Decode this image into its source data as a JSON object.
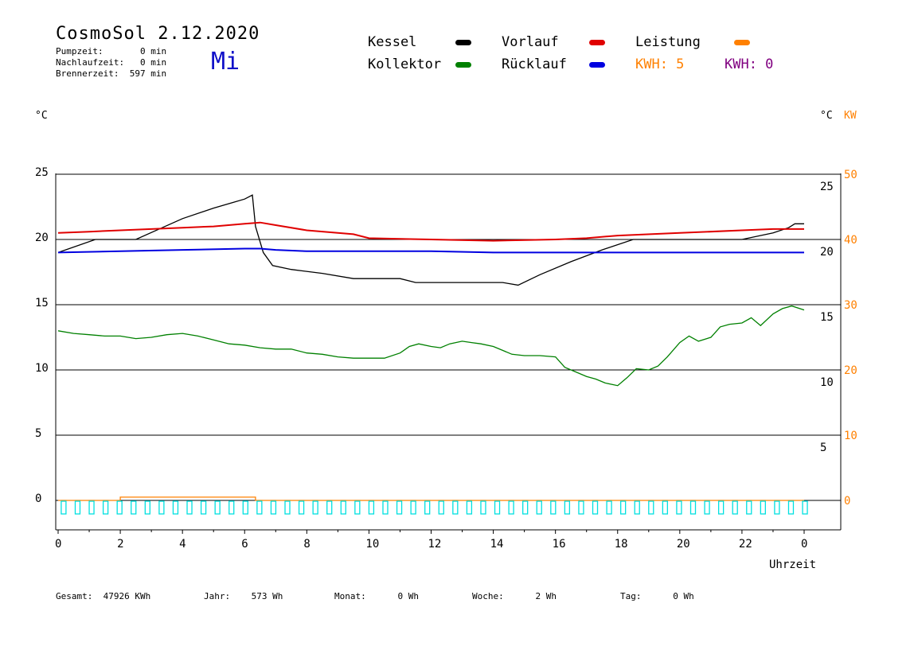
{
  "header": {
    "title": "CosmoSol 2.12.2020",
    "day": "Mi",
    "pumpzeit": "Pumpzeit:       0 min",
    "nachlaufzeit": "Nachlaufzeit:   0 min",
    "brennerzeit": "Brennerzeit:  597 min"
  },
  "legend": {
    "kessel": "Kessel",
    "vorlauf": "Vorlauf",
    "leistung": "Leistung",
    "kollektor": "Kollektor",
    "ruecklauf": "Rücklauf",
    "kwh1": "KWH: 5",
    "kwh2": "KWH: 0",
    "colors": {
      "kessel": "#000000",
      "vorlauf": "#e00000",
      "leistung": "#ff8000",
      "kollektor": "#008000",
      "ruecklauf": "#0000e0",
      "kwh2": "#800080",
      "pump": "#00e0e0"
    }
  },
  "axes": {
    "left_unit": "°C",
    "right_unit": "°C",
    "right_unit2": "KW",
    "xlabel": "Uhrzeit"
  },
  "footer": {
    "gesamt": "Gesamt:  47926 KWh",
    "jahr": "Jahr:    573 Wh",
    "monat": "Monat:      0 Wh",
    "woche": "Woche:      2 Wh",
    "tag": "Tag:      0 Wh"
  },
  "chart_data": {
    "type": "line",
    "title": "CosmoSol 2.12.2020",
    "xlabel": "Uhrzeit",
    "ylabel": "°C",
    "xlim": [
      0,
      24
    ],
    "ylim": [
      -2,
      26
    ],
    "y2lim": [
      -4,
      52
    ],
    "grid": true,
    "x_ticks": [
      "0",
      "2",
      "4",
      "6",
      "8",
      "10",
      "12",
      "14",
      "16",
      "18",
      "20",
      "22",
      "0"
    ],
    "y_ticks_left": [
      "25",
      "20",
      "15",
      "10",
      "5",
      "0"
    ],
    "y_ticks_right_c": [
      "25",
      "20",
      "15",
      "10",
      "5"
    ],
    "y_ticks_right_kw": [
      "50",
      "40",
      "30",
      "20",
      "10",
      "0"
    ],
    "series": [
      {
        "name": "Kessel",
        "axis": "left",
        "x": [
          0,
          1.2,
          2.5,
          4,
          5,
          6,
          6.25,
          6.35,
          6.6,
          6.9,
          7.5,
          8.5,
          9.5,
          11,
          11.5,
          13,
          14.3,
          14.8,
          15.5,
          16.5,
          17.5,
          18.5,
          19.5,
          21,
          22,
          23,
          23.5,
          23.7,
          24
        ],
        "y": [
          19.0,
          20.0,
          20.0,
          21.6,
          22.4,
          23.1,
          23.4,
          21.0,
          19.0,
          18.0,
          17.7,
          17.4,
          17.0,
          17.0,
          16.7,
          16.7,
          16.7,
          16.5,
          17.3,
          18.3,
          19.2,
          20.0,
          20.0,
          20.0,
          20.0,
          20.5,
          20.9,
          21.2,
          21.2
        ]
      },
      {
        "name": "Vorlauf",
        "axis": "left",
        "x": [
          0,
          1,
          2,
          3,
          4,
          5,
          6,
          6.5,
          7,
          8,
          9,
          9.5,
          10,
          12,
          14,
          16,
          17,
          18,
          20,
          22,
          23,
          24
        ],
        "y": [
          20.5,
          20.6,
          20.7,
          20.8,
          20.9,
          21.0,
          21.2,
          21.3,
          21.1,
          20.7,
          20.5,
          20.4,
          20.1,
          20.0,
          19.9,
          20.0,
          20.1,
          20.3,
          20.5,
          20.7,
          20.8,
          20.8
        ]
      },
      {
        "name": "Rücklauf",
        "axis": "left",
        "x": [
          0,
          2,
          4,
          6,
          6.5,
          7,
          8,
          10,
          12,
          14,
          16,
          18,
          20,
          22,
          24
        ],
        "y": [
          19.0,
          19.1,
          19.2,
          19.3,
          19.3,
          19.2,
          19.1,
          19.1,
          19.1,
          19.0,
          19.0,
          19.0,
          19.0,
          19.0,
          19.0
        ]
      },
      {
        "name": "Kollektor",
        "axis": "left",
        "x": [
          0,
          0.5,
          1,
          1.5,
          2,
          2.5,
          3,
          3.5,
          4,
          4.5,
          5,
          5.5,
          6,
          6.5,
          7,
          7.5,
          8,
          8.5,
          9,
          9.5,
          10,
          10.5,
          11,
          11.3,
          11.6,
          12,
          12.3,
          12.6,
          13,
          13.3,
          13.6,
          14,
          14.3,
          14.6,
          15,
          15.5,
          16,
          16.3,
          16.6,
          17,
          17.3,
          17.6,
          18,
          18.3,
          18.6,
          19,
          19.3,
          19.6,
          20,
          20.3,
          20.6,
          21,
          21.3,
          21.6,
          22,
          22.3,
          22.6,
          23,
          23.3,
          23.6,
          24
        ],
        "y": [
          13.0,
          12.8,
          12.7,
          12.6,
          12.6,
          12.4,
          12.5,
          12.7,
          12.8,
          12.6,
          12.3,
          12.0,
          11.9,
          11.7,
          11.6,
          11.6,
          11.3,
          11.2,
          11.0,
          10.9,
          10.9,
          10.9,
          11.3,
          11.8,
          12.0,
          11.8,
          11.7,
          12.0,
          12.2,
          12.1,
          12.0,
          11.8,
          11.5,
          11.2,
          11.1,
          11.1,
          11.0,
          10.2,
          9.9,
          9.5,
          9.3,
          9.0,
          8.8,
          9.4,
          10.1,
          10.0,
          10.3,
          11.0,
          12.1,
          12.6,
          12.2,
          12.5,
          13.3,
          13.5,
          13.6,
          14.0,
          13.4,
          14.3,
          14.7,
          14.9,
          14.6
        ]
      },
      {
        "name": "Leistung",
        "axis": "right",
        "x": [
          0,
          1.95,
          2.0,
          6.3,
          6.35,
          24
        ],
        "y": [
          0,
          0,
          0.5,
          0.5,
          0,
          0
        ]
      }
    ],
    "pump_markers": {
      "name": "Pumpe",
      "y": 0,
      "interval_h": 0.45
    }
  }
}
